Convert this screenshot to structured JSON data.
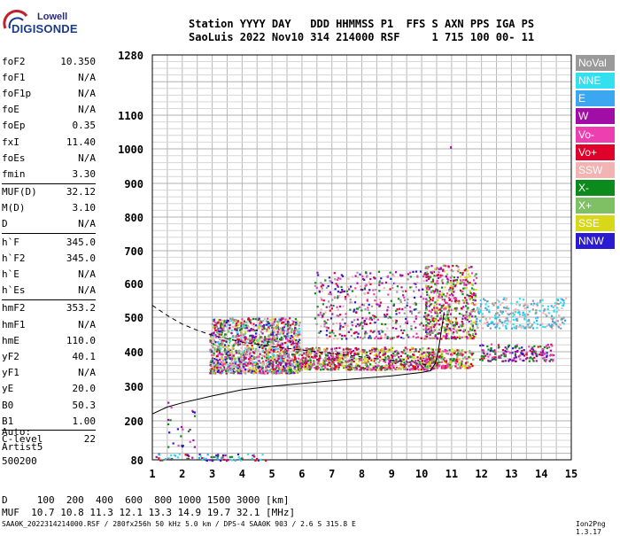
{
  "logo": {
    "top": "Lowell",
    "main": "DIGISONDE"
  },
  "header": {
    "row1": "Station YYYY DAY   DDD HHMMSS P1  FFS S AXN PPS IGA PS",
    "row2": "SaoLuis 2022 Nov10 314 214000 RSF     1 715 100 00- 11"
  },
  "params": [
    {
      "group": [
        {
          "label": "foF2",
          "value": "10.350"
        },
        {
          "label": "foF1",
          "value": "N/A"
        },
        {
          "label": "foF1p",
          "value": "N/A"
        },
        {
          "label": "foE",
          "value": "N/A"
        },
        {
          "label": "foEp",
          "value": "0.35"
        },
        {
          "label": "fxI",
          "value": "11.40"
        },
        {
          "label": "foEs",
          "value": "N/A"
        },
        {
          "label": "fmin",
          "value": "3.30"
        }
      ]
    },
    {
      "group": [
        {
          "label": "MUF(D)",
          "value": "32.12"
        },
        {
          "label": "M(D)",
          "value": "3.10"
        },
        {
          "label": "D",
          "value": "N/A"
        }
      ]
    },
    {
      "group": [
        {
          "label": "h`F",
          "value": "345.0"
        },
        {
          "label": "h`F2",
          "value": "345.0"
        },
        {
          "label": "h`E",
          "value": "N/A"
        },
        {
          "label": "h`Es",
          "value": "N/A"
        }
      ]
    },
    {
      "group": [
        {
          "label": "hmF2",
          "value": "353.2"
        },
        {
          "label": "hmF1",
          "value": "N/A"
        },
        {
          "label": "hmE",
          "value": "110.0"
        },
        {
          "label": "yF2",
          "value": "40.1"
        },
        {
          "label": "yF1",
          "value": "N/A"
        },
        {
          "label": "yE",
          "value": "20.0"
        },
        {
          "label": "B0",
          "value": "50.3"
        },
        {
          "label": "B1",
          "value": "1.00"
        }
      ]
    },
    {
      "group": [
        {
          "label": "C-level",
          "value": "22"
        }
      ]
    }
  ],
  "auto": [
    "Auto:",
    "Artist5",
    "500200"
  ],
  "legend": [
    {
      "label": "NoVal",
      "color": "#9a9a9a"
    },
    {
      "label": "NNE",
      "color": "#33e0f0"
    },
    {
      "label": "E",
      "color": "#3aa7f0"
    },
    {
      "label": "W",
      "color": "#a10ea6"
    },
    {
      "label": "Vo-",
      "color": "#ee3fb0"
    },
    {
      "label": "Vo+",
      "color": "#e0002a"
    },
    {
      "label": "SSW",
      "color": "#f3b3b3"
    },
    {
      "label": "X-",
      "color": "#0d8a1c"
    },
    {
      "label": "X+",
      "color": "#7fc064"
    },
    {
      "label": "SSE",
      "color": "#d8d81a"
    },
    {
      "label": "NNW",
      "color": "#2a1ad0"
    }
  ],
  "footer": {
    "row1": "D     100  200  400  600  800 1000 1500 3000 [km]",
    "row2": "MUF  10.7 10.8 11.3 12.1 13.3 14.9 19.7 32.1 [MHz]",
    "row3": "SAA0K_2022314214000.RSF / 280fx256h 50 kHz 5.0 km / DPS-4 SAA0K 903 / 2.6 S 315.8 E",
    "version": "Ion2Png 1.3.17"
  },
  "chart_data": {
    "type": "scatter",
    "xlim": [
      1,
      15
    ],
    "ylim": [
      80,
      1280
    ],
    "x_ticks": [
      "1",
      "2",
      "3",
      "4",
      "5",
      "6",
      "7",
      "8",
      "9",
      "10",
      "11",
      "12",
      "13",
      "14",
      "15"
    ],
    "y_ticks": [
      "80",
      "200",
      "300",
      "400",
      "500",
      "600",
      "700",
      "800",
      "900",
      "1000",
      "1100",
      "1280"
    ],
    "grid": true,
    "curves": [
      {
        "name": "true-height",
        "style": "solid",
        "points": [
          [
            1.0,
            220
          ],
          [
            1.5,
            240
          ],
          [
            2.0,
            252
          ],
          [
            3.0,
            272
          ],
          [
            4.0,
            290
          ],
          [
            5.0,
            300
          ],
          [
            6.0,
            308
          ],
          [
            7.0,
            316
          ],
          [
            8.0,
            323
          ],
          [
            9.0,
            330
          ],
          [
            10.0,
            340
          ],
          [
            10.3,
            345
          ],
          [
            10.35,
            353
          ]
        ]
      },
      {
        "name": "upper",
        "style": "solid",
        "points": [
          [
            10.35,
            353
          ],
          [
            10.45,
            365
          ],
          [
            10.55,
            400
          ],
          [
            10.65,
            455
          ],
          [
            10.75,
            515
          ]
        ]
      },
      {
        "name": "model",
        "style": "dashed",
        "points": [
          [
            1.0,
            535
          ],
          [
            1.5,
            505
          ],
          [
            2.0,
            480
          ],
          [
            2.5,
            462
          ],
          [
            3.0,
            448
          ],
          [
            3.5,
            438
          ],
          [
            4.0,
            428
          ],
          [
            5.0,
            415
          ],
          [
            6.0,
            405
          ],
          [
            7.0,
            395
          ],
          [
            8.0,
            385
          ],
          [
            9.0,
            375
          ],
          [
            10.0,
            365
          ],
          [
            10.3,
            358
          ]
        ]
      }
    ],
    "clusters": [
      {
        "x": [
          2.9,
          5.9
        ],
        "y": [
          340,
          500
        ],
        "colors": [
          "#e0002a",
          "#a10ea6",
          "#ee3fb0",
          "#0d8a1c",
          "#7fc064",
          "#d8d81a",
          "#2a1ad0",
          "#33e0f0",
          "#9a9a9a",
          "#f3b3b3"
        ],
        "n": 1500
      },
      {
        "x": [
          5.8,
          10.4
        ],
        "y": [
          350,
          415
        ],
        "colors": [
          "#e0002a",
          "#ee3fb0",
          "#0d8a1c",
          "#7fc064",
          "#d8d81a",
          "#a10ea6"
        ],
        "n": 800
      },
      {
        "x": [
          6.4,
          10.2
        ],
        "y": [
          440,
          640
        ],
        "colors": [
          "#e0002a",
          "#a10ea6",
          "#ee3fb0",
          "#0d8a1c",
          "#2a1ad0",
          "#9a9a9a",
          "#f3b3b3"
        ],
        "n": 450
      },
      {
        "x": [
          10.1,
          11.8
        ],
        "y": [
          440,
          660
        ],
        "colors": [
          "#0d8a1c",
          "#7fc064",
          "#d8d81a",
          "#e0002a",
          "#ee3fb0",
          "#a10ea6"
        ],
        "n": 550
      },
      {
        "x": [
          10.2,
          11.7
        ],
        "y": [
          355,
          410
        ],
        "colors": [
          "#0d8a1c",
          "#7fc064",
          "#d8d81a",
          "#e0002a",
          "#ee3fb0"
        ],
        "n": 220
      },
      {
        "x": [
          11.8,
          14.8
        ],
        "y": [
          470,
          560
        ],
        "colors": [
          "#33e0f0",
          "#3aa7f0",
          "#9a9a9a",
          "#f3b3b3"
        ],
        "n": 260
      },
      {
        "x": [
          11.9,
          14.4
        ],
        "y": [
          375,
          425
        ],
        "colors": [
          "#a10ea6",
          "#ee3fb0",
          "#e0002a",
          "#0d8a1c",
          "#2a1ad0"
        ],
        "n": 180
      },
      {
        "x": [
          1.1,
          4.8
        ],
        "y": [
          80,
          100
        ],
        "colors": [
          "#2a1ad0",
          "#33e0f0",
          "#3aa7f0",
          "#e0002a",
          "#0d8a1c",
          "#a10ea6"
        ],
        "n": 80
      },
      {
        "x": [
          1.5,
          2.4
        ],
        "y": [
          120,
          260
        ],
        "colors": [
          "#a10ea6",
          "#2a1ad0",
          "#0d8a1c",
          "#ee3fb0"
        ],
        "n": 25
      }
    ],
    "outlier": {
      "x": 10.95,
      "y": 1008,
      "color": "#a10ea6"
    }
  }
}
